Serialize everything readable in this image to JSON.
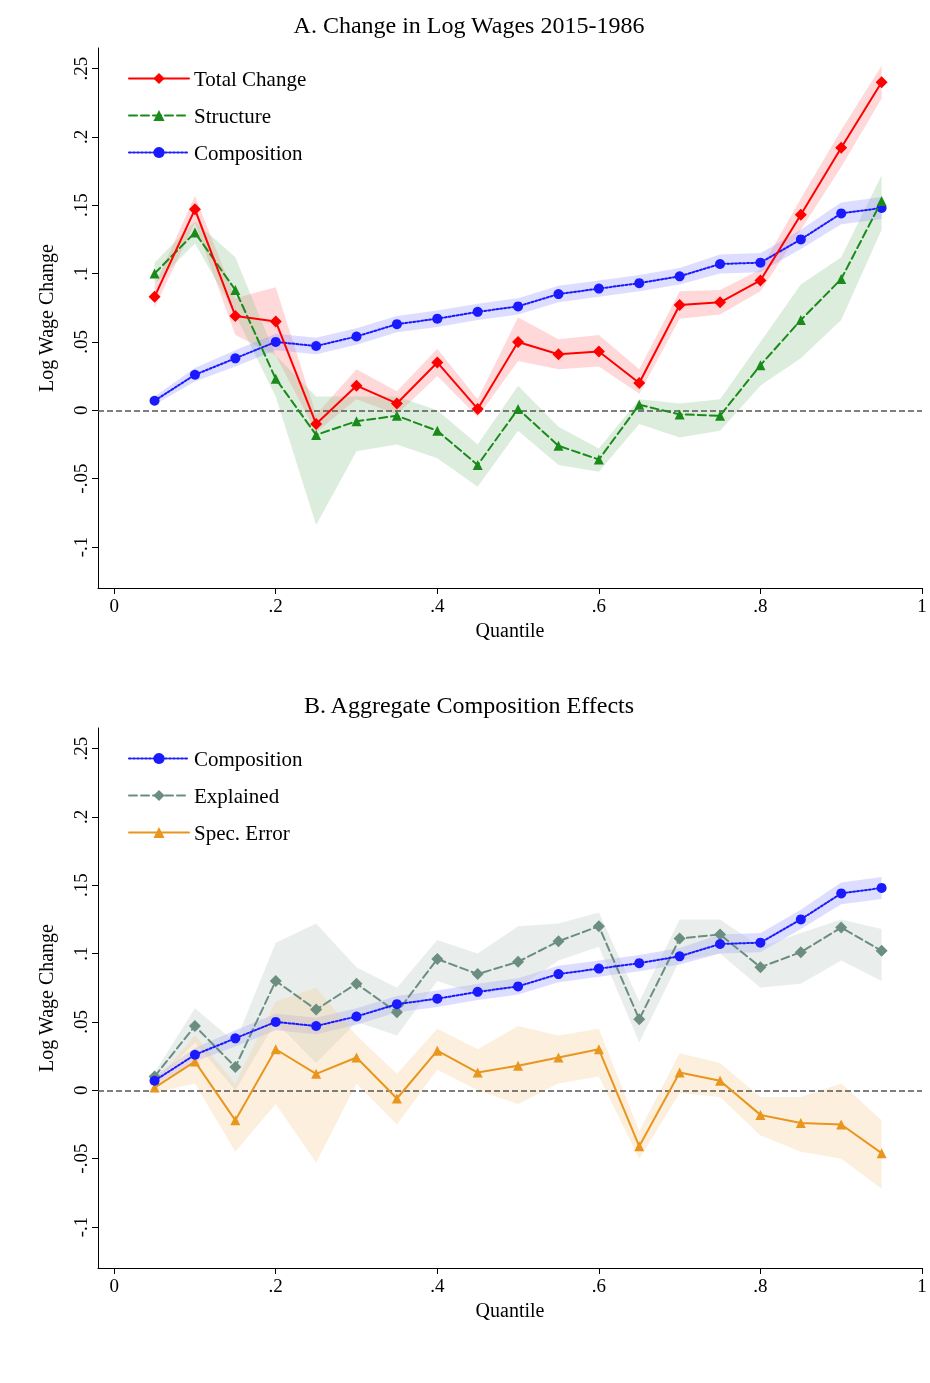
{
  "chart_data": [
    {
      "type": "line",
      "title": "A. Change in Log Wages 2015-1986",
      "xlabel": "Quantile",
      "ylabel": "Log Wage Change",
      "x": [
        0.05,
        0.1,
        0.15,
        0.2,
        0.25,
        0.3,
        0.35,
        0.4,
        0.45,
        0.5,
        0.55,
        0.6,
        0.65,
        0.7,
        0.75,
        0.8,
        0.85,
        0.9,
        0.95
      ],
      "series": [
        {
          "name": "Total Change",
          "color": "#ff0000",
          "marker": "diamond",
          "line_style": "solid",
          "values": [
            0.083,
            0.147,
            0.069,
            0.065,
            -0.01,
            0.018,
            0.005,
            0.035,
            0.001,
            0.05,
            0.041,
            0.043,
            0.02,
            0.077,
            0.079,
            0.095,
            0.143,
            0.192,
            0.24
          ],
          "lower": [
            0.075,
            0.137,
            0.055,
            0.04,
            -0.016,
            0.008,
            -0.003,
            0.025,
            -0.005,
            0.036,
            0.03,
            0.032,
            0.012,
            0.067,
            0.07,
            0.087,
            0.132,
            0.178,
            0.228
          ],
          "upper": [
            0.091,
            0.157,
            0.082,
            0.09,
            -0.003,
            0.03,
            0.014,
            0.045,
            0.008,
            0.068,
            0.052,
            0.055,
            0.03,
            0.087,
            0.088,
            0.103,
            0.155,
            0.205,
            0.252
          ]
        },
        {
          "name": "Structure",
          "color": "#1a8a1a",
          "marker": "triangle",
          "line_style": "dashed",
          "values": [
            0.1,
            0.13,
            0.088,
            0.023,
            -0.018,
            -0.008,
            -0.004,
            -0.015,
            -0.04,
            0.001,
            -0.026,
            -0.036,
            0.004,
            -0.003,
            -0.004,
            0.033,
            0.066,
            0.096,
            0.153
          ],
          "lower": [
            0.092,
            0.122,
            0.07,
            0.01,
            -0.084,
            -0.03,
            -0.025,
            -0.035,
            -0.056,
            -0.015,
            -0.04,
            -0.045,
            -0.01,
            -0.02,
            -0.015,
            0.018,
            0.038,
            0.066,
            0.132
          ],
          "upper": [
            0.108,
            0.138,
            0.112,
            0.04,
            0.01,
            0.01,
            0.01,
            0.0,
            -0.025,
            0.018,
            -0.012,
            -0.028,
            0.008,
            0.005,
            0.008,
            0.05,
            0.092,
            0.112,
            0.172
          ]
        },
        {
          "name": "Composition",
          "color": "#1a1aff",
          "marker": "circle",
          "line_style": "dotted",
          "values": [
            0.007,
            0.026,
            0.038,
            0.05,
            0.047,
            0.054,
            0.063,
            0.067,
            0.072,
            0.076,
            0.085,
            0.089,
            0.093,
            0.098,
            0.107,
            0.108,
            0.125,
            0.144,
            0.148
          ],
          "lower": [
            0.004,
            0.021,
            0.032,
            0.044,
            0.041,
            0.048,
            0.057,
            0.061,
            0.066,
            0.07,
            0.079,
            0.083,
            0.087,
            0.092,
            0.1,
            0.101,
            0.118,
            0.136,
            0.14
          ],
          "upper": [
            0.01,
            0.031,
            0.044,
            0.056,
            0.053,
            0.06,
            0.069,
            0.073,
            0.078,
            0.082,
            0.091,
            0.095,
            0.099,
            0.104,
            0.114,
            0.115,
            0.132,
            0.152,
            0.156
          ]
        }
      ],
      "xlim": [
        -0.02,
        1.0
      ],
      "xticks": [
        {
          "value": 0,
          "label": "0"
        },
        {
          "value": 0.2,
          "label": ".2"
        },
        {
          "value": 0.4,
          "label": ".4"
        },
        {
          "value": 0.6,
          "label": ".6"
        },
        {
          "value": 0.8,
          "label": ".8"
        },
        {
          "value": 1,
          "label": "1"
        }
      ],
      "ylim": [
        -0.13,
        0.265
      ],
      "yticks": [
        {
          "value": -0.1,
          "label": "-.1"
        },
        {
          "value": -0.05,
          "label": "-.05"
        },
        {
          "value": 0,
          "label": "0"
        },
        {
          "value": 0.05,
          "label": ".05"
        },
        {
          "value": 0.1,
          "label": ".1"
        },
        {
          "value": 0.15,
          "label": ".15"
        },
        {
          "value": 0.2,
          "label": ".2"
        },
        {
          "value": 0.25,
          "label": ".25"
        }
      ],
      "ref_lines": [
        {
          "axis": "y",
          "value": 0,
          "color": "#555555",
          "line_style": "dashed"
        }
      ],
      "grid": false,
      "legend": "top left"
    },
    {
      "type": "line",
      "title": "B. Aggregate Composition Effects",
      "xlabel": "Quantile",
      "ylabel": "Log Wage Change",
      "x": [
        0.05,
        0.1,
        0.15,
        0.2,
        0.25,
        0.3,
        0.35,
        0.4,
        0.45,
        0.5,
        0.55,
        0.6,
        0.65,
        0.7,
        0.75,
        0.8,
        0.85,
        0.9,
        0.95
      ],
      "series": [
        {
          "name": "Composition",
          "color": "#1a1aff",
          "marker": "circle",
          "line_style": "dotted",
          "values": [
            0.007,
            0.026,
            0.038,
            0.05,
            0.047,
            0.054,
            0.063,
            0.067,
            0.072,
            0.076,
            0.085,
            0.089,
            0.093,
            0.098,
            0.107,
            0.108,
            0.125,
            0.144,
            0.148
          ],
          "lower": [
            0.004,
            0.021,
            0.032,
            0.044,
            0.041,
            0.048,
            0.057,
            0.061,
            0.066,
            0.07,
            0.079,
            0.083,
            0.087,
            0.092,
            0.1,
            0.101,
            0.118,
            0.136,
            0.14
          ],
          "upper": [
            0.01,
            0.031,
            0.044,
            0.056,
            0.053,
            0.06,
            0.069,
            0.073,
            0.078,
            0.082,
            0.091,
            0.095,
            0.099,
            0.104,
            0.114,
            0.115,
            0.132,
            0.152,
            0.156
          ]
        },
        {
          "name": "Explained",
          "color": "#6b8e7f",
          "marker": "diamond",
          "line_style": "dashed",
          "values": [
            0.01,
            0.047,
            0.017,
            0.08,
            0.059,
            0.078,
            0.057,
            0.096,
            0.085,
            0.094,
            0.109,
            0.12,
            0.052,
            0.111,
            0.114,
            0.09,
            0.101,
            0.119,
            0.102
          ],
          "lower": [
            0.005,
            0.035,
            0.0,
            0.05,
            0.02,
            0.05,
            0.04,
            0.08,
            0.07,
            0.075,
            0.095,
            0.105,
            0.035,
            0.095,
            0.1,
            0.075,
            0.078,
            0.095,
            0.08
          ],
          "upper": [
            0.013,
            0.06,
            0.035,
            0.108,
            0.122,
            0.09,
            0.075,
            0.11,
            0.1,
            0.12,
            0.122,
            0.13,
            0.065,
            0.125,
            0.125,
            0.105,
            0.115,
            0.125,
            0.118
          ]
        },
        {
          "name": "Spec. Error",
          "color": "#e8961e",
          "marker": "triangle",
          "line_style": "solid",
          "values": [
            0.002,
            0.021,
            -0.022,
            0.03,
            0.012,
            0.024,
            -0.006,
            0.029,
            0.013,
            0.018,
            0.024,
            0.03,
            -0.041,
            0.013,
            0.007,
            -0.018,
            -0.024,
            -0.025,
            -0.046
          ],
          "lower": [
            -0.002,
            0.005,
            -0.045,
            -0.01,
            -0.053,
            0.005,
            -0.025,
            0.015,
            0.0,
            -0.01,
            0.005,
            0.01,
            -0.05,
            -0.002,
            -0.005,
            -0.033,
            -0.045,
            -0.05,
            -0.072
          ],
          "upper": [
            0.006,
            0.04,
            0.005,
            0.065,
            0.075,
            0.04,
            0.012,
            0.045,
            0.03,
            0.047,
            0.04,
            0.045,
            -0.03,
            0.027,
            0.02,
            -0.005,
            -0.005,
            0.005,
            -0.022
          ]
        }
      ],
      "xlim": [
        -0.02,
        1.0
      ],
      "xticks": [
        {
          "value": 0,
          "label": "0"
        },
        {
          "value": 0.2,
          "label": ".2"
        },
        {
          "value": 0.4,
          "label": ".4"
        },
        {
          "value": 0.6,
          "label": ".6"
        },
        {
          "value": 0.8,
          "label": ".8"
        },
        {
          "value": 1,
          "label": "1"
        }
      ],
      "ylim": [
        -0.13,
        0.265
      ],
      "yticks": [
        {
          "value": -0.1,
          "label": "-.1"
        },
        {
          "value": -0.05,
          "label": "-.05"
        },
        {
          "value": 0,
          "label": "0"
        },
        {
          "value": 0.05,
          "label": ".05"
        },
        {
          "value": 0.1,
          "label": ".1"
        },
        {
          "value": 0.15,
          "label": ".15"
        },
        {
          "value": 0.2,
          "label": ".2"
        },
        {
          "value": 0.25,
          "label": ".25"
        }
      ],
      "ref_lines": [
        {
          "axis": "y",
          "value": 0,
          "color": "#555555",
          "line_style": "dashed"
        }
      ],
      "grid": false,
      "legend": "top left"
    }
  ]
}
